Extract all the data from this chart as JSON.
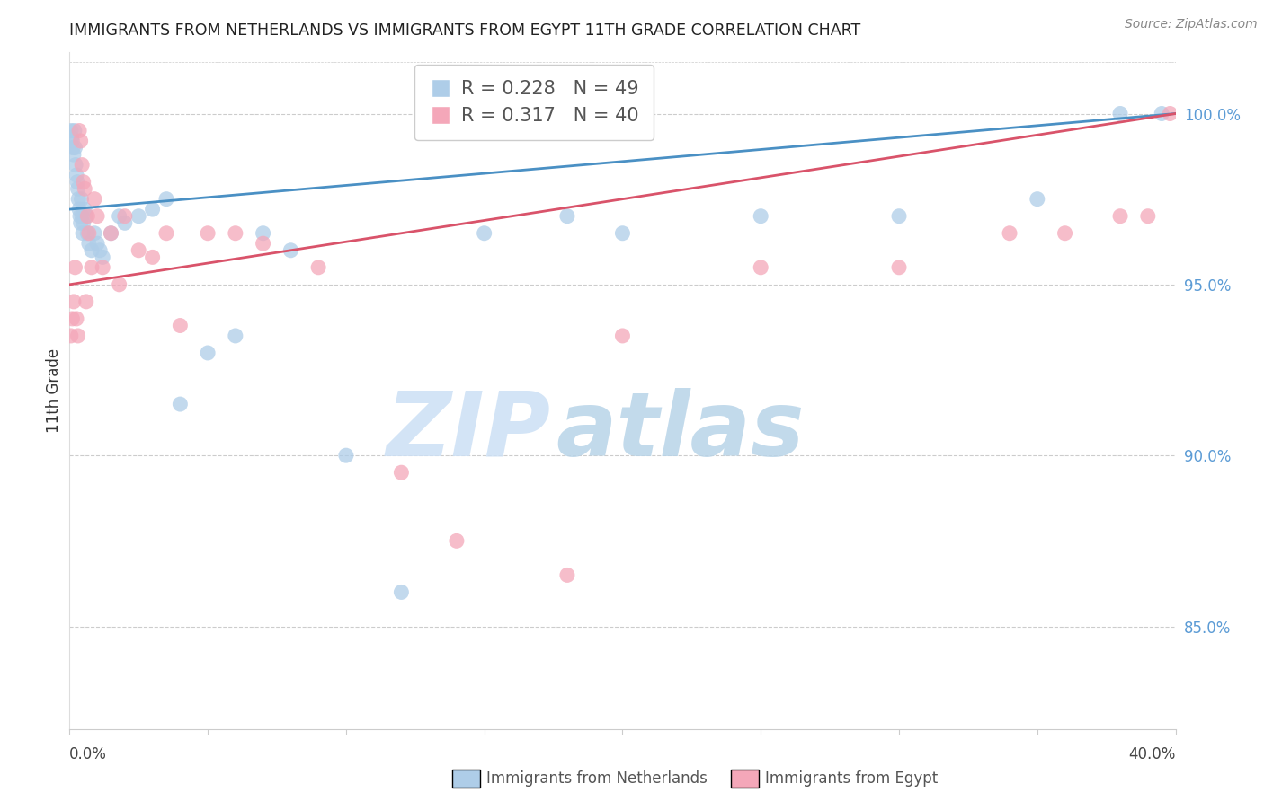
{
  "title": "IMMIGRANTS FROM NETHERLANDS VS IMMIGRANTS FROM EGYPT 11TH GRADE CORRELATION CHART",
  "source": "Source: ZipAtlas.com",
  "ylabel": "11th Grade",
  "watermark_zip": "ZIP",
  "watermark_atlas": "atlas",
  "series1_label": "Immigrants from Netherlands",
  "series1_color": "#aecde8",
  "series1_R": 0.228,
  "series1_N": 49,
  "series1_line_color": "#4a90c4",
  "series2_label": "Immigrants from Egypt",
  "series2_color": "#f4a7b9",
  "series2_R": 0.317,
  "series2_N": 40,
  "series2_line_color": "#d9536a",
  "xmin": 0.0,
  "xmax": 40.0,
  "ymin": 82.0,
  "ymax": 101.8,
  "yticks": [
    85.0,
    90.0,
    95.0,
    100.0
  ],
  "ytick_labels": [
    "85.0%",
    "90.0%",
    "95.0%",
    "100.0%"
  ],
  "background_color": "#ffffff",
  "grid_color": "#cccccc",
  "right_axis_color": "#5b9bd5",
  "netherlands_x": [
    0.05,
    0.08,
    0.1,
    0.12,
    0.15,
    0.18,
    0.2,
    0.22,
    0.25,
    0.28,
    0.3,
    0.32,
    0.35,
    0.38,
    0.4,
    0.43,
    0.45,
    0.48,
    0.5,
    0.55,
    0.6,
    0.65,
    0.7,
    0.8,
    0.9,
    1.0,
    1.1,
    1.2,
    1.5,
    1.8,
    2.0,
    2.5,
    3.0,
    3.5,
    4.0,
    5.0,
    6.0,
    7.0,
    8.0,
    10.0,
    12.0,
    15.0,
    18.0,
    20.0,
    25.0,
    30.0,
    35.0,
    38.0,
    39.5
  ],
  "netherlands_y": [
    99.5,
    99.3,
    99.2,
    99.0,
    98.8,
    99.5,
    99.0,
    98.5,
    98.2,
    98.0,
    97.8,
    97.5,
    97.2,
    97.0,
    96.8,
    97.5,
    97.0,
    96.5,
    96.8,
    97.2,
    97.0,
    96.5,
    96.2,
    96.0,
    96.5,
    96.2,
    96.0,
    95.8,
    96.5,
    97.0,
    96.8,
    97.0,
    97.2,
    97.5,
    91.5,
    93.0,
    93.5,
    96.5,
    96.0,
    90.0,
    86.0,
    96.5,
    97.0,
    96.5,
    97.0,
    97.0,
    97.5,
    100.0,
    100.0
  ],
  "egypt_x": [
    0.05,
    0.1,
    0.15,
    0.2,
    0.25,
    0.3,
    0.35,
    0.4,
    0.45,
    0.5,
    0.55,
    0.6,
    0.65,
    0.7,
    0.8,
    0.9,
    1.0,
    1.2,
    1.5,
    1.8,
    2.0,
    2.5,
    3.0,
    3.5,
    4.0,
    5.0,
    6.0,
    7.0,
    9.0,
    12.0,
    14.0,
    18.0,
    20.0,
    25.0,
    30.0,
    34.0,
    36.0,
    38.0,
    39.0,
    39.8
  ],
  "egypt_y": [
    93.5,
    94.0,
    94.5,
    95.5,
    94.0,
    93.5,
    99.5,
    99.2,
    98.5,
    98.0,
    97.8,
    94.5,
    97.0,
    96.5,
    95.5,
    97.5,
    97.0,
    95.5,
    96.5,
    95.0,
    97.0,
    96.0,
    95.8,
    96.5,
    93.8,
    96.5,
    96.5,
    96.2,
    95.5,
    89.5,
    87.5,
    86.5,
    93.5,
    95.5,
    95.5,
    96.5,
    96.5,
    97.0,
    97.0,
    100.0
  ]
}
